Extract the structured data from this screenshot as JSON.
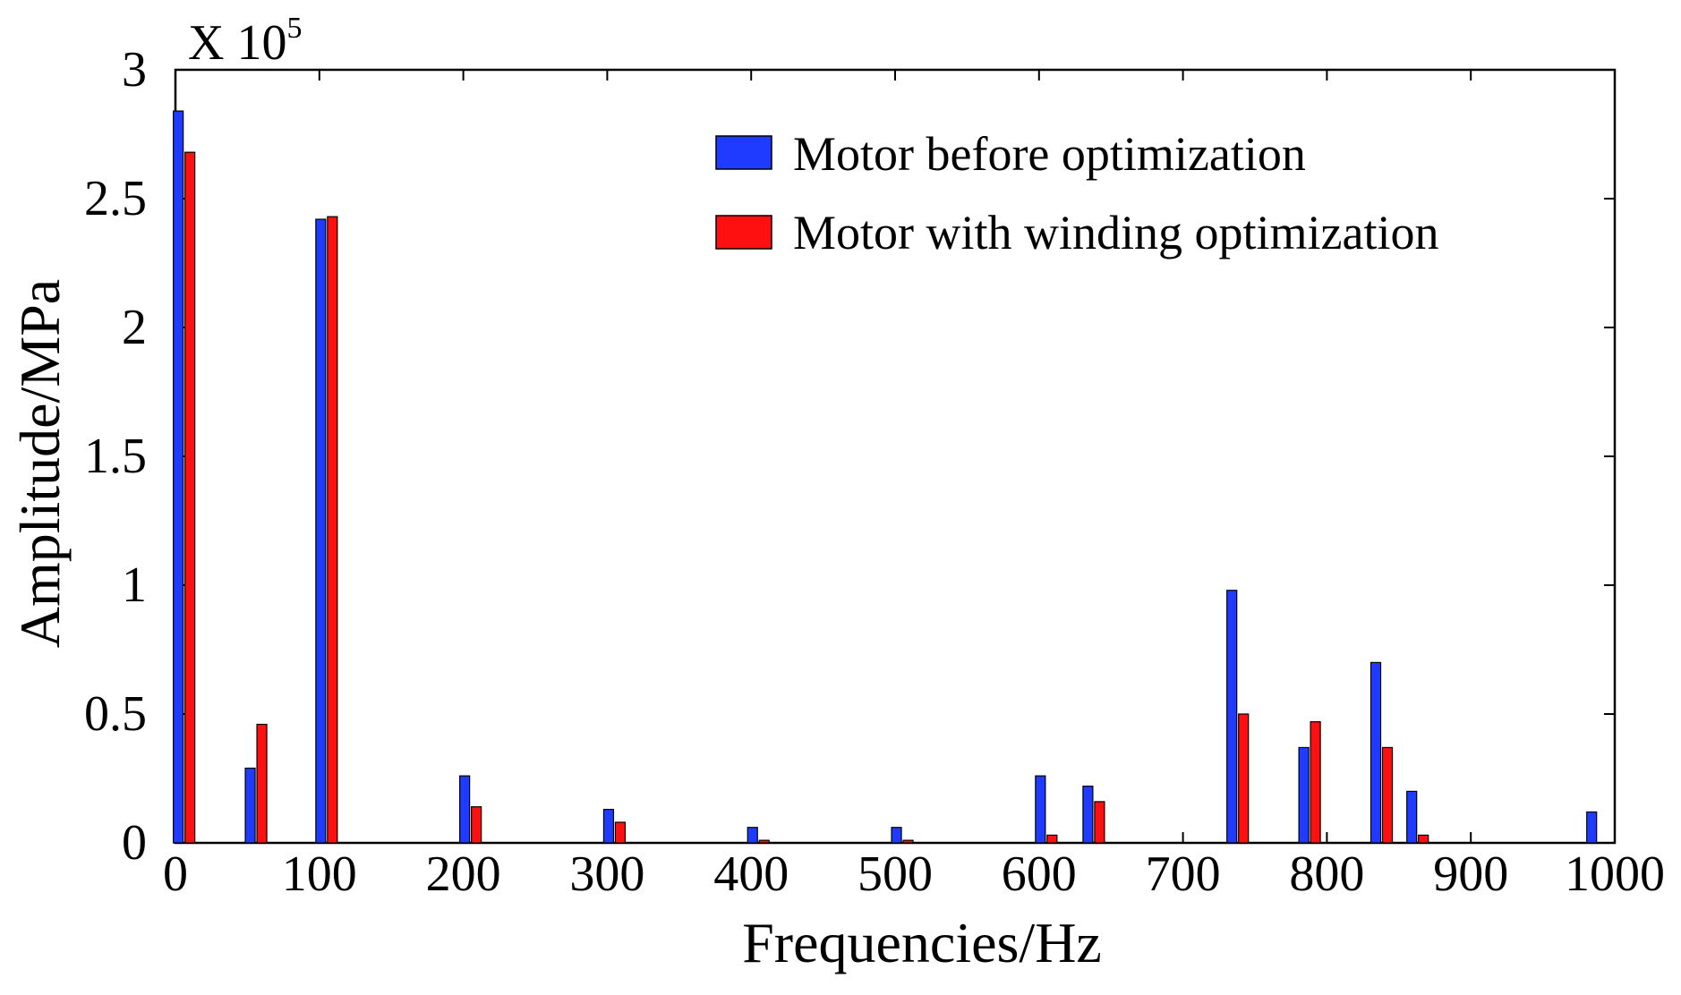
{
  "chart_data": {
    "type": "bar",
    "title": "",
    "xlabel": "Frequencies/Hz",
    "ylabel": "Amplitude/MPa",
    "y_multiplier_label": "X 10",
    "y_multiplier_exponent": "5",
    "xlim": [
      0,
      1000
    ],
    "ylim": [
      0,
      3
    ],
    "x_ticks": [
      0,
      100,
      200,
      300,
      400,
      500,
      600,
      700,
      800,
      900,
      1000
    ],
    "x_tick_labels": [
      "0",
      "100",
      "200",
      "300",
      "400",
      "500",
      "600",
      "700",
      "800",
      "900",
      "1000"
    ],
    "y_ticks": [
      0,
      0.5,
      1,
      1.5,
      2,
      2.5,
      3
    ],
    "y_tick_labels": [
      "0",
      "0.5",
      "1",
      "1.5",
      "2",
      "2.5",
      "3"
    ],
    "grid": false,
    "legend_position": "top-right",
    "x": [
      6,
      56,
      105,
      205,
      305,
      405,
      505,
      605,
      638,
      738,
      788,
      838,
      863,
      988
    ],
    "series": [
      {
        "name": "Motor before optimization",
        "color": "#1f3bff",
        "values": [
          2.84,
          0.29,
          2.42,
          0.26,
          0.13,
          0.06,
          0.06,
          0.26,
          0.22,
          0.98,
          0.37,
          0.7,
          0.2,
          0.12
        ]
      },
      {
        "name": "Motor with winding optimization",
        "color": "#ff1010",
        "values": [
          2.68,
          0.46,
          2.43,
          0.14,
          0.08,
          0.01,
          0.01,
          0.03,
          0.16,
          0.5,
          0.47,
          0.37,
          0.03,
          0.0
        ]
      }
    ]
  }
}
